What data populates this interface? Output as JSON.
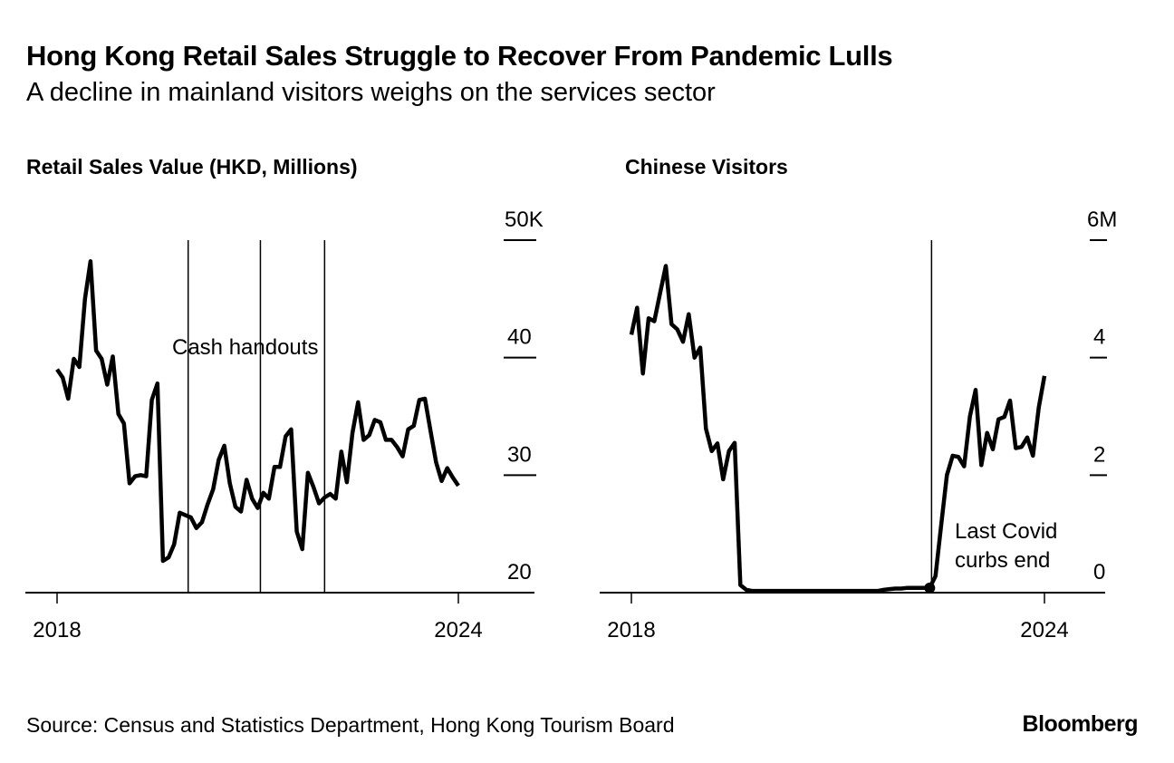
{
  "header": {
    "title": "Hong Kong Retail Sales Struggle to Recover From Pandemic Lulls",
    "subtitle": "A decline in mainland visitors weighs on the services sector"
  },
  "footer": {
    "source": "Source: Census and Statistics Department, Hong Kong Tourism Board",
    "logo": "Bloomberg"
  },
  "colors": {
    "line": "#000000",
    "background": "#ffffff"
  },
  "chart_data": [
    {
      "type": "line",
      "title": "Retail Sales Value (HKD, Millions)",
      "xlabel": "",
      "ylabel": "",
      "x_start": 2018,
      "x_step_months": 1,
      "xlim": [
        2018,
        2024
      ],
      "ylim": [
        20,
        50
      ],
      "x_ticks": [
        {
          "value": 2018,
          "label": "2018"
        },
        {
          "value": 2024,
          "label": "2024"
        }
      ],
      "y_ticks": [
        {
          "value": 50,
          "label": "50K"
        },
        {
          "value": 40,
          "label": "40"
        },
        {
          "value": 30,
          "label": "30"
        },
        {
          "value": 20,
          "label": "20"
        }
      ],
      "grid": false,
      "series": [
        {
          "name": "Retail sales value",
          "values": [
            39.0,
            38.3,
            36.5,
            39.9,
            39.2,
            45.0,
            48.2,
            40.6,
            39.9,
            37.7,
            40.1,
            35.2,
            34.4,
            29.3,
            29.9,
            30.0,
            29.9,
            36.4,
            37.8,
            22.7,
            23.0,
            24.1,
            26.8,
            26.6,
            26.4,
            25.5,
            26.0,
            27.5,
            28.8,
            31.3,
            32.5,
            29.3,
            27.3,
            26.9,
            29.6,
            28.0,
            27.2,
            28.5,
            28.0,
            30.7,
            30.7,
            33.3,
            33.9,
            25.2,
            23.7,
            30.2,
            29.0,
            27.6,
            28.1,
            28.4,
            28.0,
            32.0,
            29.4,
            33.6,
            36.2,
            33.0,
            33.4,
            34.7,
            34.5,
            33.0,
            33.0,
            32.4,
            31.6,
            33.9,
            34.2,
            36.4,
            36.5,
            33.8,
            31.1,
            29.5,
            30.6,
            29.8,
            29.1
          ]
        }
      ],
      "annotations": {
        "label": "Cash handouts",
        "vlines": [
          2019.96,
          2021.04,
          2022.0
        ]
      }
    },
    {
      "type": "line",
      "title": "Chinese Visitors",
      "xlabel": "",
      "ylabel": "",
      "x_start": 2018,
      "x_step_months": 1,
      "xlim": [
        2018,
        2024
      ],
      "ylim": [
        0,
        6
      ],
      "x_ticks": [
        {
          "value": 2018,
          "label": "2018"
        },
        {
          "value": 2024,
          "label": "2024"
        }
      ],
      "y_ticks": [
        {
          "value": 6,
          "label": "6M"
        },
        {
          "value": 4,
          "label": "4"
        },
        {
          "value": 2,
          "label": "2"
        },
        {
          "value": 0,
          "label": "0"
        }
      ],
      "grid": false,
      "series": [
        {
          "name": "Chinese visitors (millions)",
          "values": [
            4.39,
            4.85,
            3.73,
            4.67,
            4.62,
            5.1,
            5.56,
            4.57,
            4.48,
            4.27,
            4.74,
            4.0,
            4.17,
            2.79,
            2.41,
            2.54,
            1.93,
            2.41,
            2.55,
            0.13,
            0.05,
            0.03,
            0.03,
            0.03,
            0.03,
            0.03,
            0.03,
            0.03,
            0.03,
            0.03,
            0.03,
            0.03,
            0.03,
            0.03,
            0.03,
            0.03,
            0.03,
            0.03,
            0.03,
            0.03,
            0.03,
            0.03,
            0.03,
            0.03,
            0.05,
            0.06,
            0.07,
            0.07,
            0.08,
            0.08,
            0.08,
            0.08,
            0.08,
            0.28,
            1.15,
            2.0,
            2.33,
            2.31,
            2.15,
            3.0,
            3.45,
            2.17,
            2.72,
            2.44,
            2.95,
            2.99,
            3.27,
            2.46,
            2.48,
            2.64,
            2.33,
            3.15,
            3.69
          ]
        }
      ],
      "annotations": {
        "label_line1": "Last Covid",
        "label_line2": "curbs end",
        "vlines": [
          2022.36
        ],
        "marker_index": 52
      }
    }
  ]
}
